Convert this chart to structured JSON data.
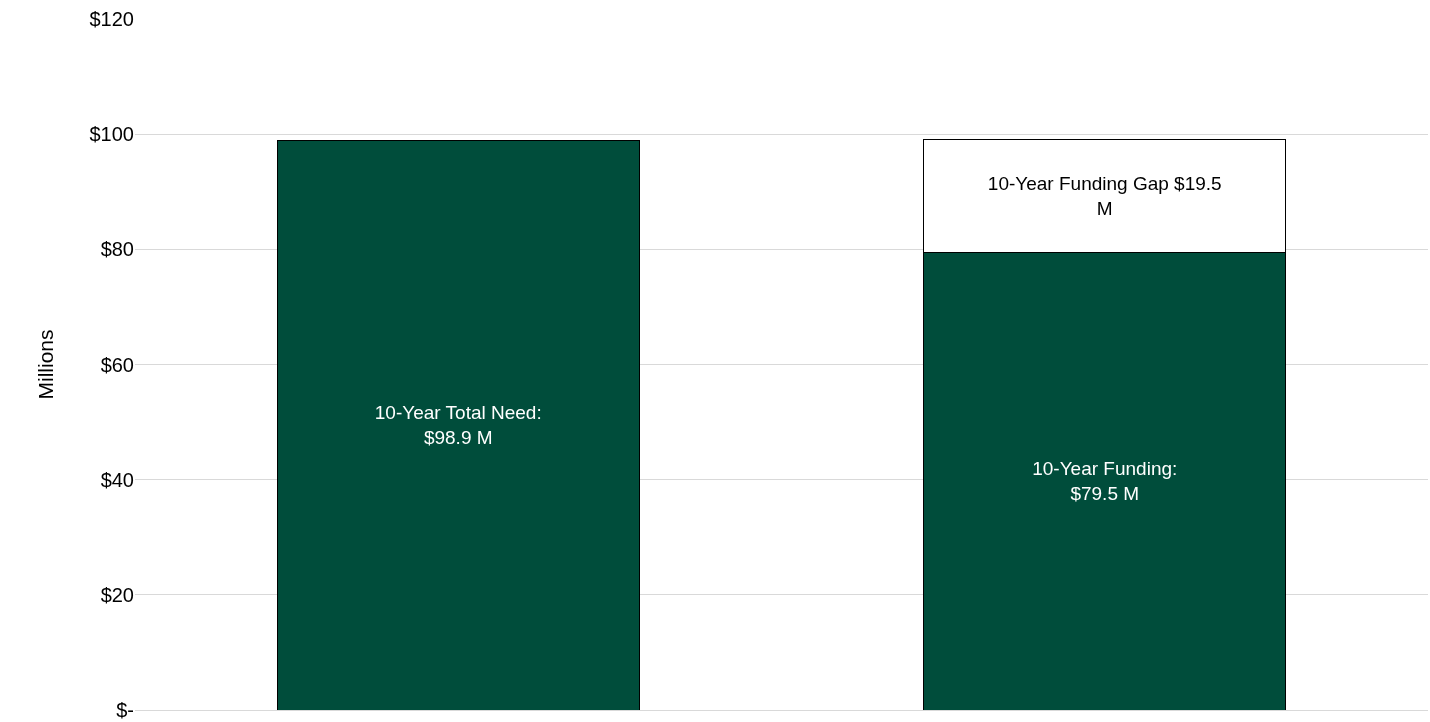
{
  "chart_data": {
    "type": "bar",
    "stacked": true,
    "ylabel": "Millions",
    "categories": [
      null,
      null
    ],
    "series": [
      {
        "color": "#004d3b",
        "values": [
          98.9,
          79.5
        ],
        "value_labels": [
          "10-Year Total Need: $98.9 M",
          "10-Year Funding: $79.5 M"
        ]
      },
      {
        "color": "#ffffff",
        "values": [
          null,
          19.5
        ],
        "value_labels": [
          null,
          "10-Year Funding Gap $19.5 M"
        ]
      }
    ],
    "ylim": [
      0,
      120
    ],
    "yticks": [
      {
        "value": 0,
        "label": "$-"
      },
      {
        "value": 20,
        "label": "$20"
      },
      {
        "value": 40,
        "label": "$40"
      },
      {
        "value": 60,
        "label": "$60"
      },
      {
        "value": 80,
        "label": "$80"
      },
      {
        "value": 100,
        "label": "$100"
      },
      {
        "value": 120,
        "label": "$120"
      }
    ],
    "grid": "y"
  }
}
